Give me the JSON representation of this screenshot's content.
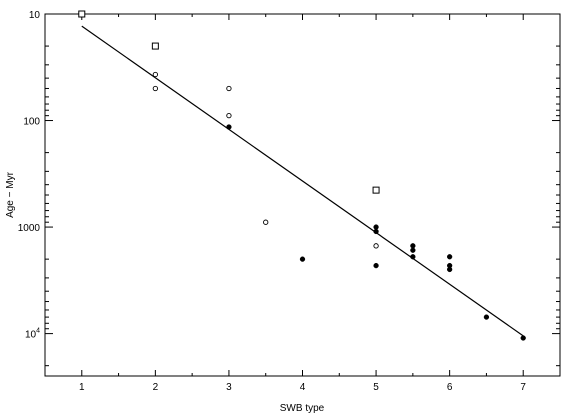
{
  "chart_data": {
    "type": "scatter",
    "title": "",
    "xlabel": "SWB type",
    "ylabel": "Age − Myr",
    "xlim": [
      0.5,
      7.5
    ],
    "ylim": [
      10,
      25000
    ],
    "yscale": "log",
    "y_inverted": true,
    "grid": false,
    "legend": "none",
    "x_ticks": [
      "1",
      "2",
      "3",
      "4",
      "5",
      "6",
      "7"
    ],
    "y_ticks": [
      {
        "value": 10,
        "label": "10"
      },
      {
        "value": 100,
        "label": "100"
      },
      {
        "value": 1000,
        "label": "1000"
      },
      {
        "value": 10000,
        "label": "10",
        "sup": "4"
      }
    ],
    "series": [
      {
        "marker": "open-square",
        "points": [
          {
            "x": 1,
            "y": 10
          },
          {
            "x": 2,
            "y": 20
          },
          {
            "x": 5,
            "y": 450
          }
        ]
      },
      {
        "marker": "open-circle",
        "points": [
          {
            "x": 2,
            "y": 37
          },
          {
            "x": 2,
            "y": 50
          },
          {
            "x": 3,
            "y": 50
          },
          {
            "x": 3,
            "y": 90
          },
          {
            "x": 3.5,
            "y": 900
          },
          {
            "x": 5,
            "y": 1500
          }
        ]
      },
      {
        "marker": "filled-circle",
        "points": [
          {
            "x": 3,
            "y": 115
          },
          {
            "x": 4,
            "y": 2000
          },
          {
            "x": 5,
            "y": 1000
          },
          {
            "x": 5,
            "y": 1100
          },
          {
            "x": 5,
            "y": 2300
          },
          {
            "x": 5.5,
            "y": 1500
          },
          {
            "x": 5.5,
            "y": 1650
          },
          {
            "x": 5.5,
            "y": 1900
          },
          {
            "x": 6,
            "y": 1900
          },
          {
            "x": 6,
            "y": 2300
          },
          {
            "x": 6,
            "y": 2500
          },
          {
            "x": 6.5,
            "y": 7000
          },
          {
            "x": 7,
            "y": 11000
          }
        ]
      }
    ],
    "fit_line": {
      "x": [
        1,
        7
      ],
      "y": [
        13,
        10500
      ]
    }
  }
}
